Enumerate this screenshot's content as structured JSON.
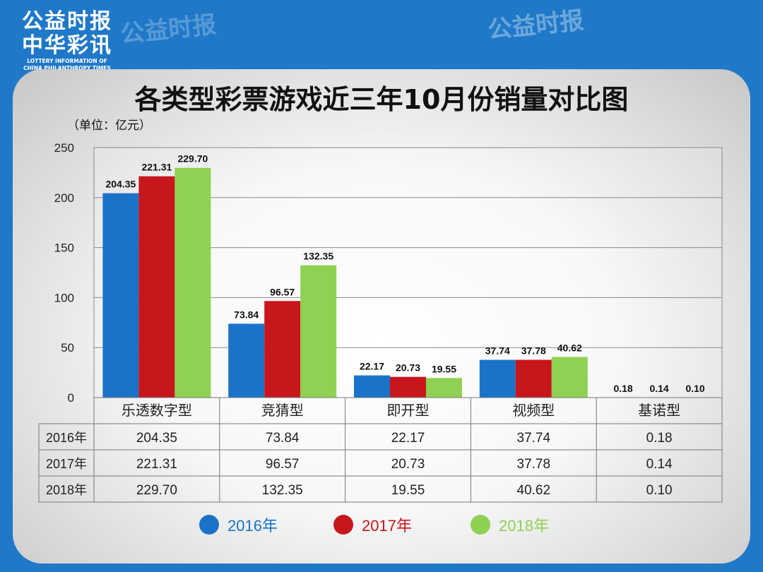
{
  "brand": {
    "line1": "公益时报",
    "line2": "中华彩讯",
    "line3": "LOTTERY INFORMATION OF",
    "line4": "CHINA PHILANTHROPY TIMES"
  },
  "colors": {
    "s2016": "#1a73c9",
    "s2017": "#c8161d",
    "s2018": "#8fd152"
  },
  "chart_data": {
    "type": "bar",
    "title": "各类型彩票游戏近三年10月份销量对比图",
    "unit_label": "（单位：亿元）",
    "categories": [
      "乐透数字型",
      "竞猜型",
      "即开型",
      "视频型",
      "基诺型"
    ],
    "ylim": [
      0,
      250
    ],
    "yticks": [
      0,
      50,
      100,
      150,
      200,
      250
    ],
    "grid": true,
    "series": [
      {
        "name": "2016年",
        "values": [
          204.35,
          73.84,
          22.17,
          37.74,
          0.18
        ]
      },
      {
        "name": "2017年",
        "values": [
          221.31,
          96.57,
          20.73,
          37.78,
          0.14
        ]
      },
      {
        "name": "2018年",
        "values": [
          229.7,
          132.35,
          19.55,
          40.62,
          0.1
        ]
      }
    ],
    "value_labels": [
      [
        "204.35",
        "73.84",
        "22.17",
        "37.74",
        "0.18"
      ],
      [
        "221.31",
        "96.57",
        "20.73",
        "37.78",
        "0.14"
      ],
      [
        "229.70",
        "132.35",
        "19.55",
        "40.62",
        "0.10"
      ]
    ],
    "legend_position": "bottom"
  }
}
